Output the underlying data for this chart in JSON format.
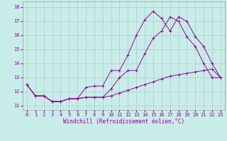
{
  "xlabel": "Windchill (Refroidissement éolien,°C)",
  "background_color": "#c8ece8",
  "line_color": "#990099",
  "grid_color": "#aacccc",
  "x_ticks": [
    0,
    1,
    2,
    3,
    4,
    5,
    6,
    7,
    8,
    9,
    10,
    11,
    12,
    13,
    14,
    15,
    16,
    17,
    18,
    19,
    20,
    21,
    22,
    23
  ],
  "y_ticks": [
    11,
    12,
    13,
    14,
    15,
    16,
    17,
    18
  ],
  "xlim": [
    -0.5,
    23.5
  ],
  "ylim": [
    10.7,
    18.4
  ],
  "line1_x": [
    0,
    1,
    2,
    3,
    4,
    5,
    6,
    7,
    8,
    9,
    10,
    11,
    12,
    13,
    14,
    15,
    16,
    17,
    18,
    19,
    20,
    21,
    22,
    23
  ],
  "line1_y": [
    12.5,
    11.7,
    11.7,
    11.3,
    11.3,
    11.5,
    11.5,
    12.3,
    12.4,
    12.4,
    13.5,
    13.5,
    14.6,
    16.0,
    17.1,
    17.7,
    17.2,
    16.3,
    17.3,
    17.0,
    15.9,
    15.2,
    14.0,
    13.0
  ],
  "line2_x": [
    0,
    1,
    2,
    3,
    4,
    5,
    6,
    7,
    8,
    9,
    10,
    11,
    12,
    13,
    14,
    15,
    16,
    17,
    18,
    19,
    20,
    21,
    22,
    23
  ],
  "line2_y": [
    12.5,
    11.7,
    11.7,
    11.3,
    11.3,
    11.5,
    11.5,
    11.6,
    11.6,
    11.6,
    12.2,
    13.0,
    13.5,
    13.5,
    14.7,
    15.8,
    16.3,
    17.3,
    17.0,
    15.9,
    15.2,
    14.0,
    13.0,
    13.0
  ],
  "line3_x": [
    0,
    1,
    2,
    3,
    4,
    5,
    6,
    7,
    8,
    9,
    10,
    11,
    12,
    13,
    14,
    15,
    16,
    17,
    18,
    19,
    20,
    21,
    22,
    23
  ],
  "line3_y": [
    12.5,
    11.7,
    11.7,
    11.3,
    11.3,
    11.5,
    11.5,
    11.6,
    11.6,
    11.6,
    11.7,
    11.9,
    12.1,
    12.3,
    12.5,
    12.7,
    12.9,
    13.1,
    13.2,
    13.3,
    13.4,
    13.5,
    13.6,
    13.0
  ]
}
